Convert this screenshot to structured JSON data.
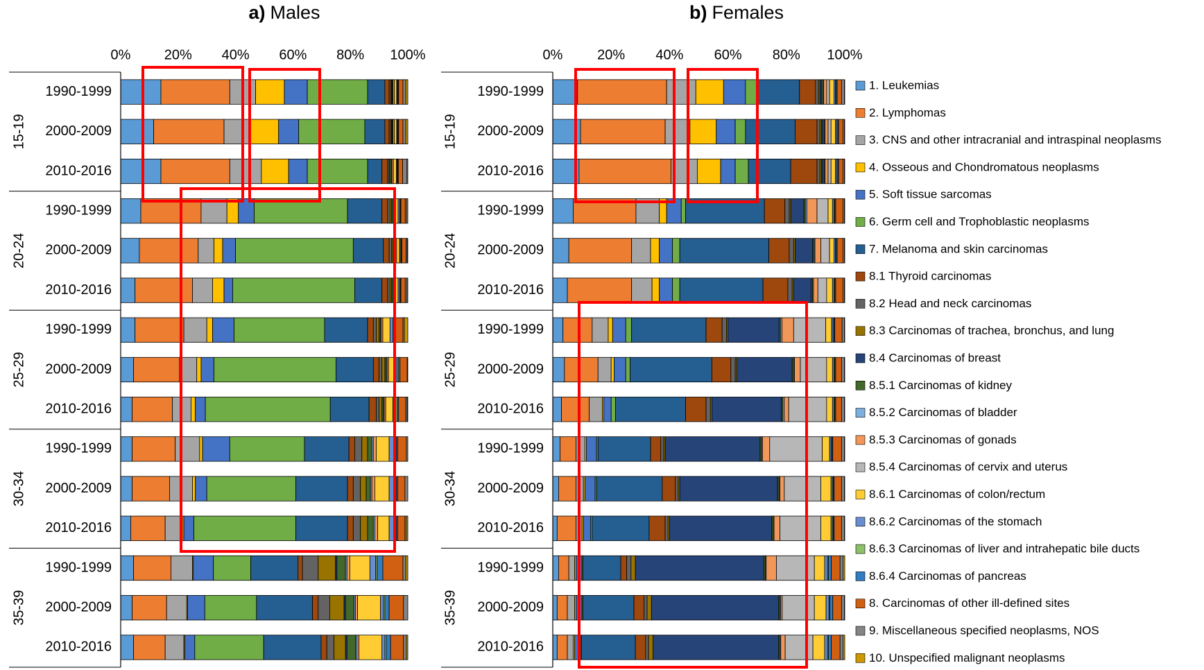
{
  "chart_data": [
    {
      "type": "bar",
      "orientation": "horizontal",
      "stacked": true,
      "panel": "a)",
      "title": "Males",
      "groups": [
        "15-19",
        "20-24",
        "25-29",
        "30-34",
        "35-39"
      ],
      "categories": [
        "1990-1999",
        "2000-2009",
        "2010-2016",
        "1990-1999",
        "2000-2009",
        "2010-2016",
        "1990-1999",
        "2000-2009",
        "2010-2016",
        "1990-1999",
        "2000-2009",
        "2010-2016",
        "1990-1999",
        "2000-2009",
        "2010-2016"
      ],
      "xlim": [
        0,
        100
      ],
      "xticks": [
        {
          "value": 0,
          "label": "0%"
        },
        {
          "value": 20,
          "label": "20%"
        },
        {
          "value": 40,
          "label": "40%"
        },
        {
          "value": 60,
          "label": "60%"
        },
        {
          "value": 80,
          "label": "80%"
        },
        {
          "value": 100,
          "label": "100%"
        }
      ],
      "series": [
        {
          "values": [
            14,
            11.5,
            14,
            7,
            6.5,
            5,
            5,
            4.5,
            4,
            4,
            4,
            3.5,
            4.5,
            4,
            4.5
          ]
        },
        {
          "values": [
            24,
            24.5,
            24,
            21,
            20.5,
            20,
            17,
            16,
            14,
            15,
            13,
            12,
            13,
            12,
            11
          ]
        },
        {
          "values": [
            9,
            9,
            11,
            9,
            5.5,
            7,
            8,
            6,
            6.5,
            8.5,
            8,
            6,
            7.5,
            7,
            6.5
          ]
        },
        {
          "values": [
            10,
            10,
            9.5,
            4,
            3,
            4,
            2,
            1.5,
            1.5,
            1,
            1,
            0.5,
            0.3,
            0.3,
            0.3
          ]
        },
        {
          "values": [
            8,
            7,
            6.5,
            5.5,
            4.5,
            3,
            7.5,
            4.5,
            3.5,
            9.5,
            4,
            3.5,
            7,
            6,
            3.5
          ]
        },
        {
          "values": [
            21,
            23,
            21,
            32.5,
            41,
            42.5,
            31.5,
            42.5,
            43.5,
            26,
            31,
            35.5,
            13,
            18,
            24
          ]
        },
        {
          "values": [
            6,
            7,
            5,
            12,
            10.5,
            9.5,
            15,
            13,
            13.5,
            15.5,
            18,
            18,
            16.5,
            19.5,
            20
          ]
        },
        {
          "values": [
            1.5,
            1.5,
            2,
            2,
            2,
            2,
            2,
            2,
            2.5,
            2,
            2,
            2,
            1.5,
            2,
            2
          ]
        },
        {
          "values": [
            0.5,
            0.5,
            0.5,
            0.8,
            0.8,
            0.8,
            1,
            1,
            1,
            2.5,
            2.5,
            2.5,
            5.5,
            4,
            2.5
          ]
        },
        {
          "values": [
            0.3,
            0.3,
            0.3,
            0.5,
            0.5,
            0.5,
            1,
            1,
            1,
            2,
            2,
            2.5,
            6,
            5,
            4
          ]
        },
        {
          "values": [
            0,
            0,
            0,
            0,
            0,
            0,
            0,
            0,
            0,
            0,
            0,
            0,
            0.5,
            0.5,
            0.5
          ]
        },
        {
          "values": [
            0.3,
            0.3,
            0.5,
            0.5,
            0.5,
            0.5,
            0.5,
            0.5,
            0.5,
            1.5,
            1.5,
            2,
            3,
            3,
            3
          ]
        },
        {
          "values": [
            0.2,
            0.2,
            0.2,
            0.3,
            0.3,
            0.3,
            0.3,
            0.3,
            0.3,
            0.5,
            0.5,
            0.5,
            0.5,
            0.5,
            0.5
          ]
        },
        {
          "values": [
            0.5,
            0.5,
            0.5,
            0.5,
            0.5,
            0.5,
            0.5,
            0.5,
            0.5,
            1,
            1,
            1,
            1,
            0.7,
            0.7
          ]
        },
        {
          "values": [
            0,
            0,
            0,
            0,
            0,
            0,
            0,
            0,
            0,
            0,
            0,
            0,
            0,
            0,
            0
          ]
        },
        {
          "values": [
            0.8,
            0.8,
            1,
            1,
            1,
            1,
            2.5,
            2,
            2.5,
            4.5,
            5,
            4,
            7,
            8,
            8
          ]
        },
        {
          "values": [
            0.3,
            0.3,
            0.3,
            0.5,
            0.3,
            0.5,
            1,
            1,
            1,
            2,
            2,
            2,
            2,
            1,
            1
          ]
        },
        {
          "values": [
            0.2,
            0.2,
            0.2,
            0.3,
            0.3,
            0.3,
            0.5,
            0.5,
            0.5,
            0.5,
            0.5,
            0.5,
            0.5,
            0.5,
            0.5
          ]
        },
        {
          "values": [
            0.2,
            0.2,
            0.2,
            0.2,
            0.2,
            0.2,
            0.5,
            0.5,
            0.5,
            0.5,
            0.5,
            0.5,
            2,
            1.5,
            1.5
          ]
        },
        {
          "values": [
            1.5,
            1.5,
            1.5,
            1.5,
            1.5,
            1.5,
            2.5,
            2.5,
            2.5,
            3,
            2.5,
            2.5,
            7,
            5,
            4.5
          ]
        },
        {
          "values": [
            1,
            1,
            1.5,
            0.5,
            0.4,
            0.6,
            0.5,
            0.2,
            0.5,
            0.5,
            1,
            0.5,
            1,
            1.5,
            1
          ]
        },
        {
          "values": [
            0.7,
            0.7,
            0.3,
            0.4,
            0.2,
            0.3,
            1.2,
            0,
            0.2,
            0,
            0,
            0.5,
            0.7,
            0,
            0.5
          ]
        }
      ]
    },
    {
      "type": "bar",
      "orientation": "horizontal",
      "stacked": true,
      "panel": "b)",
      "title": "Females",
      "legend": "right",
      "groups": [
        "15-19",
        "20-24",
        "25-29",
        "30-34",
        "35-39"
      ],
      "categories": [
        "1990-1999",
        "2000-2009",
        "2010-2016",
        "1990-1999",
        "2000-2009",
        "2010-2016",
        "1990-1999",
        "2000-2009",
        "2010-2016",
        "1990-1999",
        "2000-2009",
        "2010-2016",
        "1990-1999",
        "2000-2009",
        "2010-2016"
      ],
      "xlim": [
        0,
        100
      ],
      "xticks": [
        {
          "value": 0,
          "label": "0%"
        },
        {
          "value": 20,
          "label": "20%"
        },
        {
          "value": 40,
          "label": "40%"
        },
        {
          "value": 60,
          "label": "60%"
        },
        {
          "value": 80,
          "label": "80%"
        },
        {
          "value": 100,
          "label": "100%"
        }
      ],
      "series": [
        {
          "name": "1. Leukemias",
          "color": "#5b9bd5",
          "values": [
            8.5,
            9.5,
            9,
            7,
            5.5,
            5,
            3.5,
            4,
            3,
            2.5,
            2,
            1.5,
            2,
            1.5,
            1.5
          ]
        },
        {
          "name": "2. Lymphomas",
          "color": "#ed7d31",
          "values": [
            30.5,
            29,
            31.5,
            21.5,
            21.5,
            22,
            10,
            11.5,
            9.5,
            5.5,
            6,
            6.5,
            3.5,
            3.5,
            3.5
          ]
        },
        {
          "name": "3. CNS and other intracranial and intraspinal neoplasms",
          "color": "#a5a5a5",
          "values": [
            10,
            8.5,
            9,
            8,
            6.5,
            7,
            5.5,
            4.5,
            4.5,
            3,
            2.5,
            2,
            2,
            2.5,
            2
          ]
        },
        {
          "name": "4. Osseous and Chondromatous neoplasms",
          "color": "#ffc000",
          "values": [
            9.5,
            9,
            8,
            2.5,
            3,
            2.5,
            1.5,
            1,
            0.5,
            0.5,
            0.5,
            0.5,
            0.5,
            0.5,
            0.5
          ]
        },
        {
          "name": "5. Soft tissue sarcomas",
          "color": "#4472c4",
          "values": [
            7.5,
            6.5,
            5,
            5,
            4.5,
            4.5,
            4.5,
            4,
            2.5,
            3.5,
            3.5,
            2.5,
            2,
            2,
            2
          ]
        },
        {
          "name": "6. Germ cell and Trophoblastic neoplasms",
          "color": "#70ad47",
          "values": [
            4,
            3.5,
            4.5,
            1.5,
            2.5,
            2.5,
            2,
            1.5,
            1.5,
            0.5,
            0.5,
            0.5,
            0.3,
            0.3,
            0.3
          ]
        },
        {
          "name": "7. Melanoma and skin carcinomas",
          "color": "#255e91",
          "values": [
            14.5,
            17,
            14.5,
            27,
            30.5,
            28.5,
            25.5,
            28,
            24,
            18,
            22.5,
            19.5,
            13,
            17.5,
            18.5
          ]
        },
        {
          "name": "8.1 Thyroid carcinomas",
          "color": "#9e480e",
          "values": [
            5.5,
            7.5,
            9,
            7,
            7,
            8.5,
            5.5,
            6.5,
            7,
            3.5,
            4.5,
            5.5,
            2,
            3.5,
            3.5
          ]
        },
        {
          "name": "8.2 Head and neck carcinomas",
          "color": "#636363",
          "values": [
            1,
            1,
            1,
            1.5,
            1.5,
            1.5,
            1.5,
            1.5,
            1.5,
            1,
            1,
            1,
            1.5,
            1,
            1
          ]
        },
        {
          "name": "8.3 Carcinomas of trachea, bronchus, and lung",
          "color": "#997300",
          "values": [
            0.5,
            0.5,
            0.5,
            0.5,
            0.5,
            0.5,
            0.5,
            0.5,
            0.5,
            0.5,
            0.5,
            0.5,
            1.5,
            1.5,
            1.5
          ]
        },
        {
          "name": "8.4 Carcinomas of breast",
          "color": "#264478",
          "values": [
            0.5,
            0.5,
            0.5,
            4.5,
            6,
            6,
            17.5,
            19,
            23.8,
            32.5,
            33.5,
            35,
            44,
            43.5,
            43
          ]
        },
        {
          "name": "8.5.1 Carcinomas of kidney",
          "color": "#43682b",
          "values": [
            0.5,
            0.5,
            0.5,
            0.5,
            0.5,
            0.5,
            0.5,
            0.5,
            0.5,
            0.5,
            0.5,
            0.5,
            0.5,
            0.5,
            0.5
          ]
        },
        {
          "name": "8.5.2 Carcinomas of bladder",
          "color": "#7cafdd",
          "values": [
            0.3,
            0.3,
            0.3,
            0.5,
            0.3,
            0.3,
            0.5,
            0.3,
            0.5,
            0.3,
            0.3,
            0.3,
            0.3,
            0.3,
            0.3
          ]
        },
        {
          "name": "8.5.3 Carcinomas of gonads",
          "color": "#f1975a",
          "values": [
            1,
            1,
            1,
            3.5,
            2,
            1.5,
            4,
            2,
            1.5,
            2.5,
            1.5,
            2,
            3.5,
            0.5,
            1.5
          ]
        },
        {
          "name": "8.5.4 Carcinomas of cervix and uterus",
          "color": "#b7b7b7",
          "values": [
            1,
            1,
            1,
            3.8,
            3,
            3,
            11,
            9,
            13,
            18,
            12.5,
            14,
            13,
            11,
            9.5
          ]
        },
        {
          "name": "8.6.1 Carcinomas of colon/rectum",
          "color": "#ffcd33",
          "values": [
            1.5,
            1.5,
            1.5,
            1.5,
            1.5,
            2,
            2,
            2,
            2,
            2.5,
            3.5,
            3.5,
            3.5,
            4,
            4
          ]
        },
        {
          "name": "8.6.2 Carcinomas of the stomach",
          "color": "#698ed0",
          "values": [
            0.5,
            0.5,
            0.5,
            0.5,
            0.5,
            0.5,
            0.5,
            0.5,
            0.5,
            0.5,
            0.5,
            0.5,
            1,
            1,
            1
          ]
        },
        {
          "name": "8.6.3 Carcinomas of liver and intrahepatic bile ducts",
          "color": "#8cc168",
          "values": [
            0.3,
            0.3,
            0.3,
            0.3,
            0.3,
            0.3,
            0.3,
            0.3,
            0.3,
            0.3,
            0.3,
            0.3,
            0.3,
            0.3,
            0.3
          ]
        },
        {
          "name": "8.6.4 Carcinomas of pancreas",
          "color": "#327dc2",
          "values": [
            0.3,
            0.3,
            0.3,
            0.3,
            0.3,
            0.3,
            0.3,
            0.3,
            0.3,
            0.3,
            0.3,
            0.3,
            1,
            1,
            1
          ]
        },
        {
          "name": "8. Carcinomas of other ill-defined sites",
          "color": "#d26012",
          "values": [
            1.5,
            1.5,
            1.5,
            2.5,
            2,
            2.5,
            2.5,
            2,
            2,
            3,
            2.5,
            2.5,
            3,
            3,
            3
          ]
        },
        {
          "name": "9. Miscellaneous specified neoplasms, NOS",
          "color": "#848484",
          "values": [
            1,
            0.5,
            0.5,
            0.5,
            0.5,
            0.5,
            0.8,
            1,
            1,
            1,
            1,
            1,
            1,
            1,
            1
          ]
        },
        {
          "name": "10. Unspecified malignant neoplasms",
          "color": "#cc9a00",
          "values": [
            0.1,
            0.1,
            0.1,
            0.1,
            0.1,
            0.1,
            0.1,
            0.1,
            0.1,
            0.1,
            0.1,
            0.1,
            0.6,
            0.1,
            0.6
          ]
        }
      ]
    }
  ]
}
